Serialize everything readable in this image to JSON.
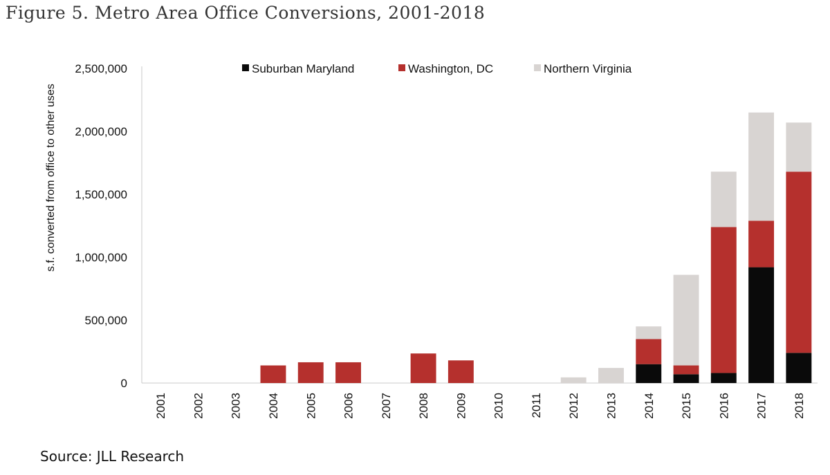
{
  "figure": {
    "title": "Figure 5. Metro Area Office Conversions, 2001-2018",
    "source": "Source: JLL Research"
  },
  "colors": {
    "suburban_maryland": "#0a0a0a",
    "washington_dc": "#b5302d",
    "northern_virginia": "#d8d4d2",
    "axis": "#c9c9c9"
  },
  "chart_data": {
    "type": "bar",
    "stacked": true,
    "ylabel": "s.f. converted from office to other uses",
    "xlabel": "",
    "ylim": [
      0,
      2500000
    ],
    "yticks": [
      "0",
      "500,000",
      "1,000,000",
      "1,500,000",
      "2,000,000",
      "2,500,000"
    ],
    "ytick_values": [
      0,
      500000,
      1000000,
      1500000,
      2000000,
      2500000
    ],
    "legend_position": "top",
    "categories": [
      "2001",
      "2002",
      "2003",
      "2004",
      "2005",
      "2006",
      "2007",
      "2008",
      "2009",
      "2010",
      "2011",
      "2012",
      "2013",
      "2014",
      "2015",
      "2016",
      "2017",
      "2018"
    ],
    "series": [
      {
        "name": "Suburban Maryland",
        "color": "#0a0a0a",
        "values": [
          0,
          0,
          0,
          0,
          0,
          0,
          0,
          0,
          0,
          0,
          0,
          0,
          0,
          150000,
          70000,
          80000,
          920000,
          240000
        ]
      },
      {
        "name": "Washington, DC",
        "color": "#b5302d",
        "values": [
          0,
          0,
          0,
          140000,
          165000,
          165000,
          0,
          235000,
          180000,
          0,
          0,
          0,
          0,
          200000,
          70000,
          1160000,
          370000,
          1440000
        ]
      },
      {
        "name": "Northern Virginia",
        "color": "#d8d4d2",
        "values": [
          0,
          0,
          0,
          0,
          0,
          0,
          0,
          0,
          0,
          0,
          0,
          45000,
          120000,
          100000,
          720000,
          440000,
          860000,
          390000
        ]
      }
    ]
  }
}
